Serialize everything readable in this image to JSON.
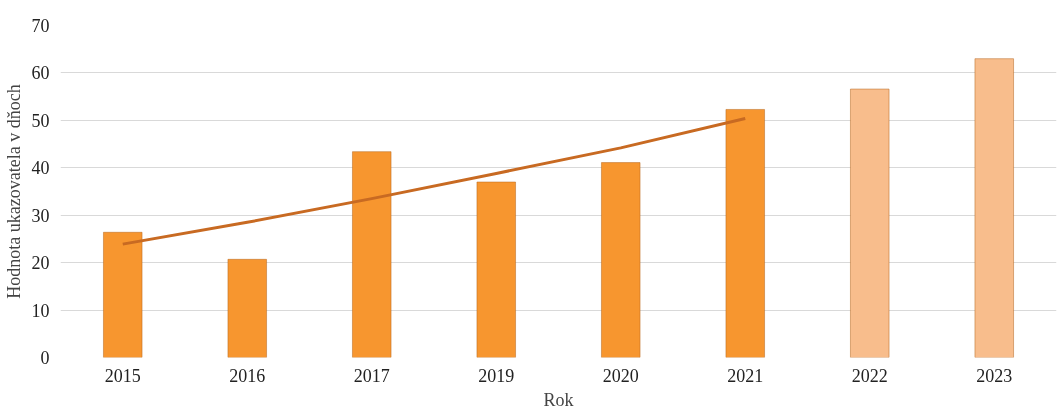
{
  "chart_data": {
    "type": "bar",
    "xlabel": "Rok",
    "ylabel": "Hodnota ukazovatela v dňoch",
    "categories": [
      "2015",
      "2016",
      "2017",
      "2019",
      "2020",
      "2021",
      "2022",
      "2023"
    ],
    "series": [
      {
        "values": [
          26.4,
          20.7,
          43.4,
          37,
          41.1,
          52.3,
          56.6,
          63
        ],
        "colors": [
          "#f7962f",
          "#f7962f",
          "#f7962f",
          "#f7962f",
          "#f7962f",
          "#f7962f",
          "#f8bd8c",
          "#f8bd8c"
        ]
      },
      {
        "type": "line",
        "color": "#c86a22",
        "values": [
          23.9,
          28.5,
          33.5,
          38.8,
          44.2,
          50.4,
          null,
          null
        ]
      }
    ],
    "ylim": [
      0,
      70
    ],
    "yticks": [
      0,
      10,
      20,
      30,
      40,
      50,
      60,
      70
    ],
    "grid": "y"
  }
}
